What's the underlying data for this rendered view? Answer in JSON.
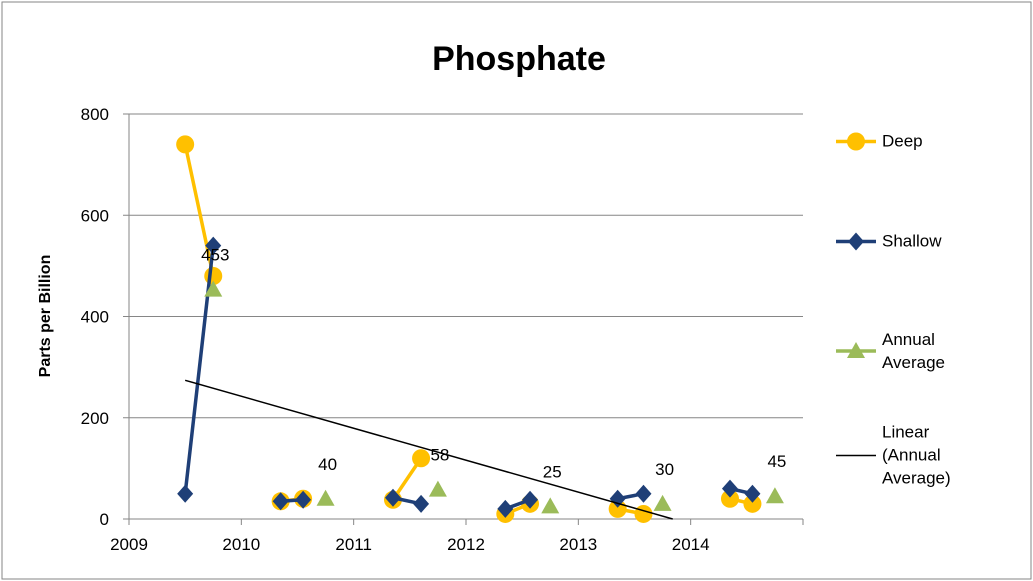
{
  "chart_data": {
    "type": "line",
    "title": "Phosphate",
    "y_label": "Parts per Billion",
    "xlim": [
      2009,
      2015
    ],
    "xticks": [
      2009,
      2010,
      2011,
      2012,
      2013,
      2014
    ],
    "ylim": [
      0,
      800
    ],
    "yticks": [
      0,
      200,
      400,
      600,
      800
    ],
    "grid": true,
    "legend": "right",
    "series": [
      {
        "name": "Deep",
        "color": "#ffc000",
        "marker": "circle",
        "x": [
          2009.5,
          2009.75,
          null,
          2010.35,
          2010.55,
          null,
          2011.35,
          2011.6,
          null,
          2012.35,
          2012.57,
          null,
          2013.35,
          2013.58,
          null,
          2014.35,
          2014.55
        ],
        "values": [
          740,
          480,
          null,
          35,
          40,
          null,
          38,
          120,
          null,
          10,
          30,
          null,
          20,
          10,
          null,
          40,
          30
        ]
      },
      {
        "name": "Shallow",
        "color": "#1f3f77",
        "marker": "diamond",
        "x": [
          2009.5,
          2009.75,
          null,
          2010.35,
          2010.55,
          null,
          2011.35,
          2011.6,
          null,
          2012.35,
          2012.57,
          null,
          2013.35,
          2013.58,
          null,
          2014.35,
          2014.55
        ],
        "values": [
          50,
          540,
          null,
          35,
          38,
          null,
          42,
          30,
          null,
          20,
          38,
          null,
          40,
          50,
          null,
          60,
          50
        ]
      },
      {
        "name": "Annual Average",
        "color": "#9bbb59",
        "marker": "triangle",
        "line": false,
        "data_labels": true,
        "x": [
          2009.75,
          2010.75,
          2011.75,
          2012.75,
          2013.75,
          2014.75
        ],
        "values": [
          453,
          40,
          58,
          25,
          30,
          45
        ]
      },
      {
        "name": "Linear (Annual Average)",
        "color": "#000000",
        "marker": "none",
        "x": [
          2009.5,
          2013.84
        ],
        "values": [
          274,
          0
        ]
      }
    ]
  }
}
